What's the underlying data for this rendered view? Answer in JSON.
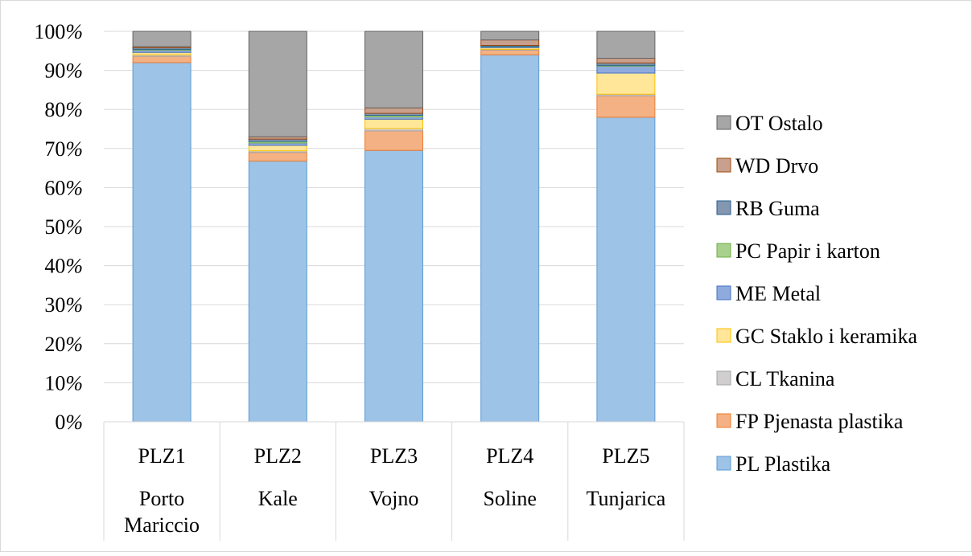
{
  "chart_data": {
    "type": "bar",
    "stacked": true,
    "percent_stacked": true,
    "title": "",
    "xlabel": "",
    "ylabel": "",
    "ylim": [
      0,
      100
    ],
    "yticks": [
      "0%",
      "10%",
      "20%",
      "30%",
      "40%",
      "50%",
      "60%",
      "70%",
      "80%",
      "90%",
      "100%"
    ],
    "grid": true,
    "legend_position": "right",
    "categories": [
      {
        "code": "PLZ1",
        "name": "Porto Mariccio"
      },
      {
        "code": "PLZ2",
        "name": "Kale"
      },
      {
        "code": "PLZ3",
        "name": "Vojno"
      },
      {
        "code": "PLZ4",
        "name": "Soline"
      },
      {
        "code": "PLZ5",
        "name": "Tunjarica"
      }
    ],
    "series": [
      {
        "name": "PL Plastika",
        "color": "#9dc3e6",
        "values": [
          92.0,
          66.8,
          69.5,
          94.0,
          78.0
        ]
      },
      {
        "name": "FP Pjenasta plastika",
        "color": "#f4b183",
        "values": [
          1.6,
          2.2,
          5.0,
          1.2,
          5.5
        ]
      },
      {
        "name": "CL Tkanina",
        "color": "#d0cece",
        "values": [
          0.4,
          0.4,
          0.6,
          0.2,
          0.4
        ]
      },
      {
        "name": "GC Staklo i keramika",
        "color": "#ffe699",
        "values": [
          0.6,
          1.4,
          2.4,
          0.4,
          5.4
        ]
      },
      {
        "name": "ME Metal",
        "color": "#8faadc",
        "values": [
          0.6,
          0.6,
          0.6,
          0.3,
          1.8
        ]
      },
      {
        "name": "PC Papir i karton",
        "color": "#a9d18e",
        "values": [
          0.2,
          0.4,
          0.4,
          0.1,
          0.2
        ]
      },
      {
        "name": "RB Guma",
        "color": "#8497b0",
        "values": [
          0.4,
          0.6,
          0.5,
          0.2,
          0.6
        ]
      },
      {
        "name": "WD Drvo",
        "color": "#c9a08d",
        "values": [
          0.3,
          0.6,
          1.4,
          1.4,
          1.2
        ]
      },
      {
        "name": "OT Ostalo",
        "color": "#a6a6a6",
        "values": [
          3.9,
          27.0,
          19.6,
          2.2,
          6.9
        ]
      }
    ],
    "series_stroke": {
      "PL Plastika": "#5b9bd5",
      "FP Pjenasta plastika": "#ed7d31",
      "CL Tkanina": "#a5a5a5",
      "GC Staklo i keramika": "#ffc000",
      "ME Metal": "#4472c4",
      "PC Papir i karton": "#70ad47",
      "RB Guma": "#255e91",
      "WD Drvo": "#9e480e",
      "OT Ostalo": "#636363"
    }
  }
}
